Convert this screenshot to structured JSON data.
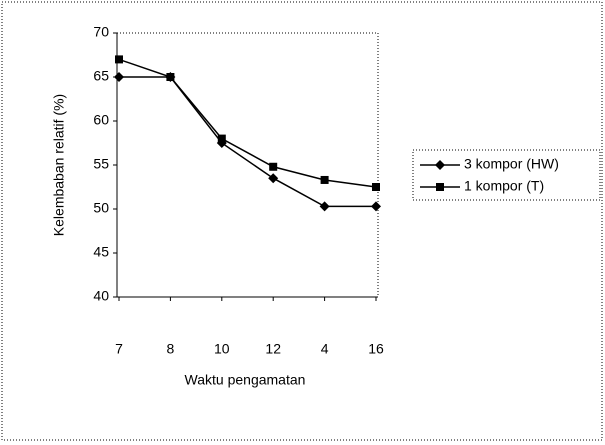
{
  "chart_data": {
    "type": "line",
    "categories": [
      "7",
      "8",
      "10",
      "12",
      "4",
      "16"
    ],
    "series": [
      {
        "name": "3 kompor (HW)",
        "color": "#000000",
        "marker": "diamond",
        "values": [
          65,
          65,
          57.5,
          53.5,
          50.3,
          50.3
        ]
      },
      {
        "name": "1 kompor (T)",
        "color": "#000000",
        "marker": "square",
        "values": [
          67,
          65,
          58,
          54.8,
          53.3,
          52.5
        ]
      }
    ],
    "xlabel": "Waktu pengamatan",
    "ylabel": "Kelembaban relatif (%)",
    "ylim": [
      40,
      70
    ],
    "yticks": [
      40,
      45,
      50,
      55,
      60,
      65,
      70
    ],
    "grid": false,
    "legend": "right"
  }
}
